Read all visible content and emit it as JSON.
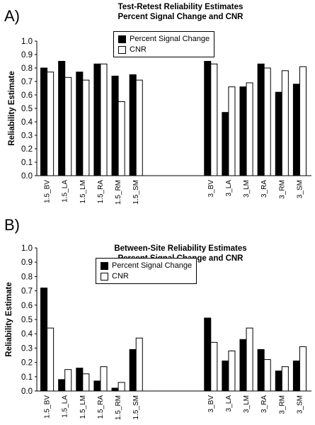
{
  "chart_data": [
    {
      "type": "bar",
      "panel_label": "A)",
      "title": "Test-Retest Reliability Estimates",
      "subtitle": "Percent Signal Change and CNR",
      "ylabel": "Reliability Estimate",
      "xlabel": "",
      "ylim": [
        0,
        1.0
      ],
      "yticks": [
        "0.0",
        "0.1",
        "0.2",
        "0.3",
        "0.4",
        "0.5",
        "0.6",
        "0.7",
        "0.8",
        "0.9",
        "1.0"
      ],
      "categories": [
        "1.5_BV",
        "1.5_LA",
        "1.5_LM",
        "1.5_RA",
        "1.5_RM",
        "1.5_SM",
        "3_BV",
        "3_LA",
        "3_LM",
        "3_RA",
        "3_RM",
        "3_SM"
      ],
      "group_split_after": 6,
      "legend_position": "top-center",
      "grid": false,
      "series": [
        {
          "name": "Percent Signal Change",
          "color": "#000000",
          "values": [
            0.8,
            0.85,
            0.77,
            0.83,
            0.74,
            0.75,
            0.85,
            0.47,
            0.66,
            0.83,
            0.62,
            0.68
          ]
        },
        {
          "name": "CNR",
          "color": "#ffffff",
          "values": [
            0.77,
            0.73,
            0.71,
            0.83,
            0.55,
            0.71,
            0.83,
            0.66,
            0.69,
            0.8,
            0.78,
            0.81
          ]
        }
      ]
    },
    {
      "type": "bar",
      "panel_label": "B)",
      "title": "Between-Site Reliability Estimates",
      "subtitle": "Percent Signal Change and CNR",
      "ylabel": "Reliability Estimate",
      "xlabel": "",
      "ylim": [
        0,
        1.0
      ],
      "yticks": [
        "0.0",
        "0.1",
        "0.2",
        "0.3",
        "0.4",
        "0.5",
        "0.6",
        "0.7",
        "0.8",
        "0.9",
        "1.0"
      ],
      "categories": [
        "1.5_BV",
        "1.5_LA",
        "1.5_LM",
        "1.5_RA",
        "1.5_RM",
        "1.5_SM",
        "3_BV",
        "3_LA",
        "3_LM",
        "3_RA",
        "3_RM",
        "3_SM"
      ],
      "group_split_after": 6,
      "legend_position": "top-center",
      "grid": false,
      "series": [
        {
          "name": "Percent Signal Change",
          "color": "#000000",
          "values": [
            0.72,
            0.08,
            0.16,
            0.07,
            0.02,
            0.29,
            0.51,
            0.21,
            0.36,
            0.29,
            0.14,
            0.21
          ]
        },
        {
          "name": "CNR",
          "color": "#ffffff",
          "values": [
            0.44,
            0.15,
            0.12,
            0.17,
            0.06,
            0.37,
            0.34,
            0.28,
            0.44,
            0.22,
            0.17,
            0.31
          ]
        }
      ]
    }
  ]
}
